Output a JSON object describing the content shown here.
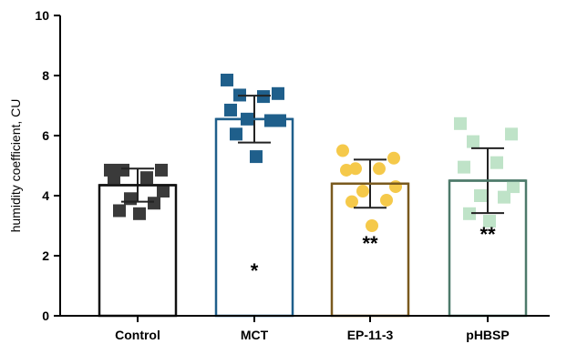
{
  "chart_data": {
    "type": "bar",
    "title": "",
    "xlabel": "",
    "ylabel": "humidity coefficient, CU",
    "ylim": [
      0,
      10
    ],
    "yticks": [
      "0",
      "2",
      "4",
      "6",
      "8",
      "10"
    ],
    "categories": [
      "Control",
      "MCT",
      "EP-11-3",
      "pHBSP"
    ],
    "values": [
      4.35,
      6.55,
      4.4,
      4.5
    ],
    "sd": [
      0.55,
      0.78,
      0.8,
      1.08
    ],
    "significance": [
      "",
      "*",
      "**",
      "**"
    ],
    "points": [
      [
        4.85,
        4.85,
        4.85,
        4.6,
        4.6,
        4.15,
        3.9,
        3.75,
        3.5,
        3.4
      ],
      [
        7.85,
        7.4,
        7.35,
        7.3,
        6.85,
        6.5,
        6.55,
        6.5,
        6.05,
        5.3
      ],
      [
        5.5,
        5.25,
        4.9,
        4.9,
        4.85,
        4.3,
        4.15,
        3.85,
        3.8,
        3.0
      ],
      [
        6.4,
        6.05,
        5.8,
        5.1,
        4.95,
        4.3,
        4.0,
        3.95,
        3.4,
        3.15
      ]
    ],
    "colors": {
      "Control": "#3a3a3a",
      "MCT": "#1f5f8b",
      "EP-11-3": "#f5c94a",
      "pHBSP": "#bfe3c8"
    },
    "bar_edge_colors": {
      "Control": "#111111",
      "MCT": "#1f5f8b",
      "EP-11-3": "#7a5a1e",
      "pHBSP": "#4d7a6a"
    },
    "marker_shapes": [
      "square",
      "square",
      "circle",
      "square"
    ],
    "grid": false,
    "legend": "none"
  }
}
